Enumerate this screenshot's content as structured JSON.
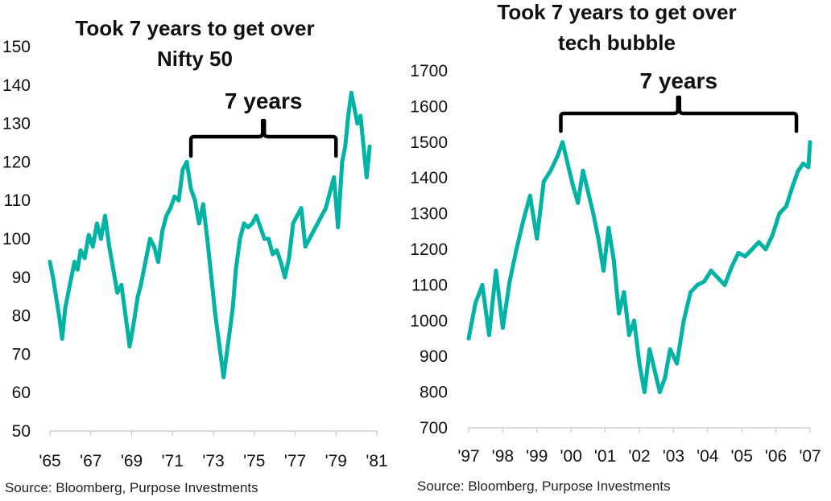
{
  "accent_color": "#00b3a4",
  "chart_data": [
    {
      "type": "line",
      "title_lines": [
        "Took 7 years to get over",
        "Nifty 50"
      ],
      "title": "Took 7 years to get over Nifty 50",
      "xlabel": "",
      "ylabel": "",
      "ylim": [
        50,
        150
      ],
      "y_ticks": [
        "150",
        "140",
        "130",
        "120",
        "110",
        "100",
        "90",
        "80",
        "70",
        "60",
        "50"
      ],
      "y_tick_values": [
        150,
        140,
        130,
        120,
        110,
        100,
        90,
        80,
        70,
        60,
        50
      ],
      "x_ticks": [
        "'65",
        "'67",
        "'69",
        "'71",
        "'73",
        "'75",
        "'77",
        "'79",
        "'81"
      ],
      "x_tick_values": [
        1965,
        1967,
        1969,
        1971,
        1973,
        1975,
        1977,
        1979,
        1981
      ],
      "xlim": [
        1965,
        1981
      ],
      "grid": false,
      "annotation": "7 years",
      "bracket": [
        1971.9,
        1979.0
      ],
      "source": "Source: Bloomberg, Purpose Investments",
      "series": [
        {
          "color": "#00b3a4",
          "x": [
            1965.0,
            1965.15,
            1965.3,
            1965.45,
            1965.6,
            1965.75,
            1965.9,
            1966.05,
            1966.2,
            1966.35,
            1966.5,
            1966.7,
            1966.9,
            1967.1,
            1967.3,
            1967.5,
            1967.7,
            1967.9,
            1968.1,
            1968.3,
            1968.5,
            1968.7,
            1968.9,
            1969.1,
            1969.3,
            1969.45,
            1969.6,
            1969.75,
            1969.9,
            1970.1,
            1970.3,
            1970.5,
            1970.7,
            1970.9,
            1971.1,
            1971.3,
            1971.5,
            1971.7,
            1971.9,
            1972.1,
            1972.3,
            1972.5,
            1972.7,
            1972.9,
            1973.1,
            1973.3,
            1973.5,
            1973.65,
            1973.8,
            1973.95,
            1974.1,
            1974.3,
            1974.5,
            1974.7,
            1974.9,
            1975.1,
            1975.3,
            1975.5,
            1975.7,
            1975.9,
            1976.1,
            1976.3,
            1976.5,
            1976.7,
            1976.9,
            1977.1,
            1977.3,
            1977.5,
            1977.7,
            1977.9,
            1978.1,
            1978.3,
            1978.5,
            1978.7,
            1978.9,
            1979.1,
            1979.3,
            1979.45,
            1979.6,
            1979.75,
            1979.9,
            1980.05,
            1980.2,
            1980.35,
            1980.5,
            1980.65
          ],
          "y": [
            94,
            90,
            85,
            80,
            74,
            82,
            86,
            90,
            94,
            92,
            97,
            95,
            101,
            98,
            104,
            100,
            106,
            98,
            92,
            86,
            88,
            80,
            72,
            78,
            85,
            88,
            92,
            96,
            100,
            98,
            94,
            102,
            106,
            108,
            111,
            110,
            118,
            120,
            113,
            110,
            104,
            109,
            100,
            90,
            80,
            72,
            64,
            70,
            76,
            82,
            92,
            100,
            104,
            103,
            104,
            106,
            103,
            100,
            100,
            96,
            97,
            94,
            90,
            95,
            104,
            106,
            108,
            98,
            100,
            102,
            104,
            106,
            108,
            112,
            116,
            103,
            120,
            124,
            132,
            138,
            134,
            130,
            132,
            124,
            116,
            124
          ]
        }
      ]
    },
    {
      "type": "line",
      "title_lines": [
        "Took 7 years to get over",
        "tech bubble"
      ],
      "title": "Took 7 years to get over tech bubble",
      "xlabel": "",
      "ylabel": "",
      "ylim": [
        700,
        1700
      ],
      "y_ticks": [
        "1700",
        "1600",
        "1500",
        "1400",
        "1300",
        "1200",
        "1100",
        "1000",
        "900",
        "800",
        "700"
      ],
      "y_tick_values": [
        1700,
        1600,
        1500,
        1400,
        1300,
        1200,
        1100,
        1000,
        900,
        800,
        700
      ],
      "x_ticks": [
        "'97",
        "'98",
        "'99",
        "'00",
        "'01",
        "'02",
        "'03",
        "'04",
        "'05",
        "'06",
        "'07"
      ],
      "x_tick_values": [
        1997,
        1998,
        1999,
        2000,
        2001,
        2002,
        2003,
        2004,
        2005,
        2006,
        2007
      ],
      "xlim": [
        1997,
        2007
      ],
      "grid": false,
      "annotation": "7 years",
      "bracket": [
        1999.7,
        2006.6
      ],
      "source": "Source: Bloomberg, Purpose Investments",
      "series": [
        {
          "color": "#00b3a4",
          "x": [
            1997.0,
            1997.2,
            1997.4,
            1997.6,
            1997.8,
            1998.0,
            1998.2,
            1998.4,
            1998.6,
            1998.8,
            1999.0,
            1999.2,
            1999.4,
            1999.6,
            1999.75,
            1999.9,
            2000.05,
            2000.2,
            2000.35,
            2000.5,
            2000.65,
            2000.8,
            2000.95,
            2001.1,
            2001.25,
            2001.4,
            2001.55,
            2001.7,
            2001.85,
            2002.0,
            2002.15,
            2002.3,
            2002.45,
            2002.6,
            2002.75,
            2002.9,
            2003.1,
            2003.3,
            2003.5,
            2003.7,
            2003.9,
            2004.1,
            2004.3,
            2004.5,
            2004.7,
            2004.9,
            2005.1,
            2005.3,
            2005.5,
            2005.7,
            2005.9,
            2006.1,
            2006.3,
            2006.5,
            2006.65,
            2006.8,
            2006.95,
            2007.0
          ],
          "y": [
            950,
            1050,
            1100,
            960,
            1140,
            980,
            1110,
            1200,
            1280,
            1350,
            1230,
            1390,
            1420,
            1460,
            1500,
            1440,
            1380,
            1330,
            1420,
            1360,
            1300,
            1230,
            1140,
            1260,
            1170,
            1020,
            1080,
            960,
            1000,
            880,
            800,
            920,
            860,
            800,
            840,
            920,
            880,
            1000,
            1080,
            1100,
            1110,
            1140,
            1120,
            1100,
            1150,
            1190,
            1180,
            1200,
            1220,
            1200,
            1240,
            1300,
            1320,
            1380,
            1420,
            1440,
            1430,
            1500
          ]
        }
      ]
    }
  ]
}
